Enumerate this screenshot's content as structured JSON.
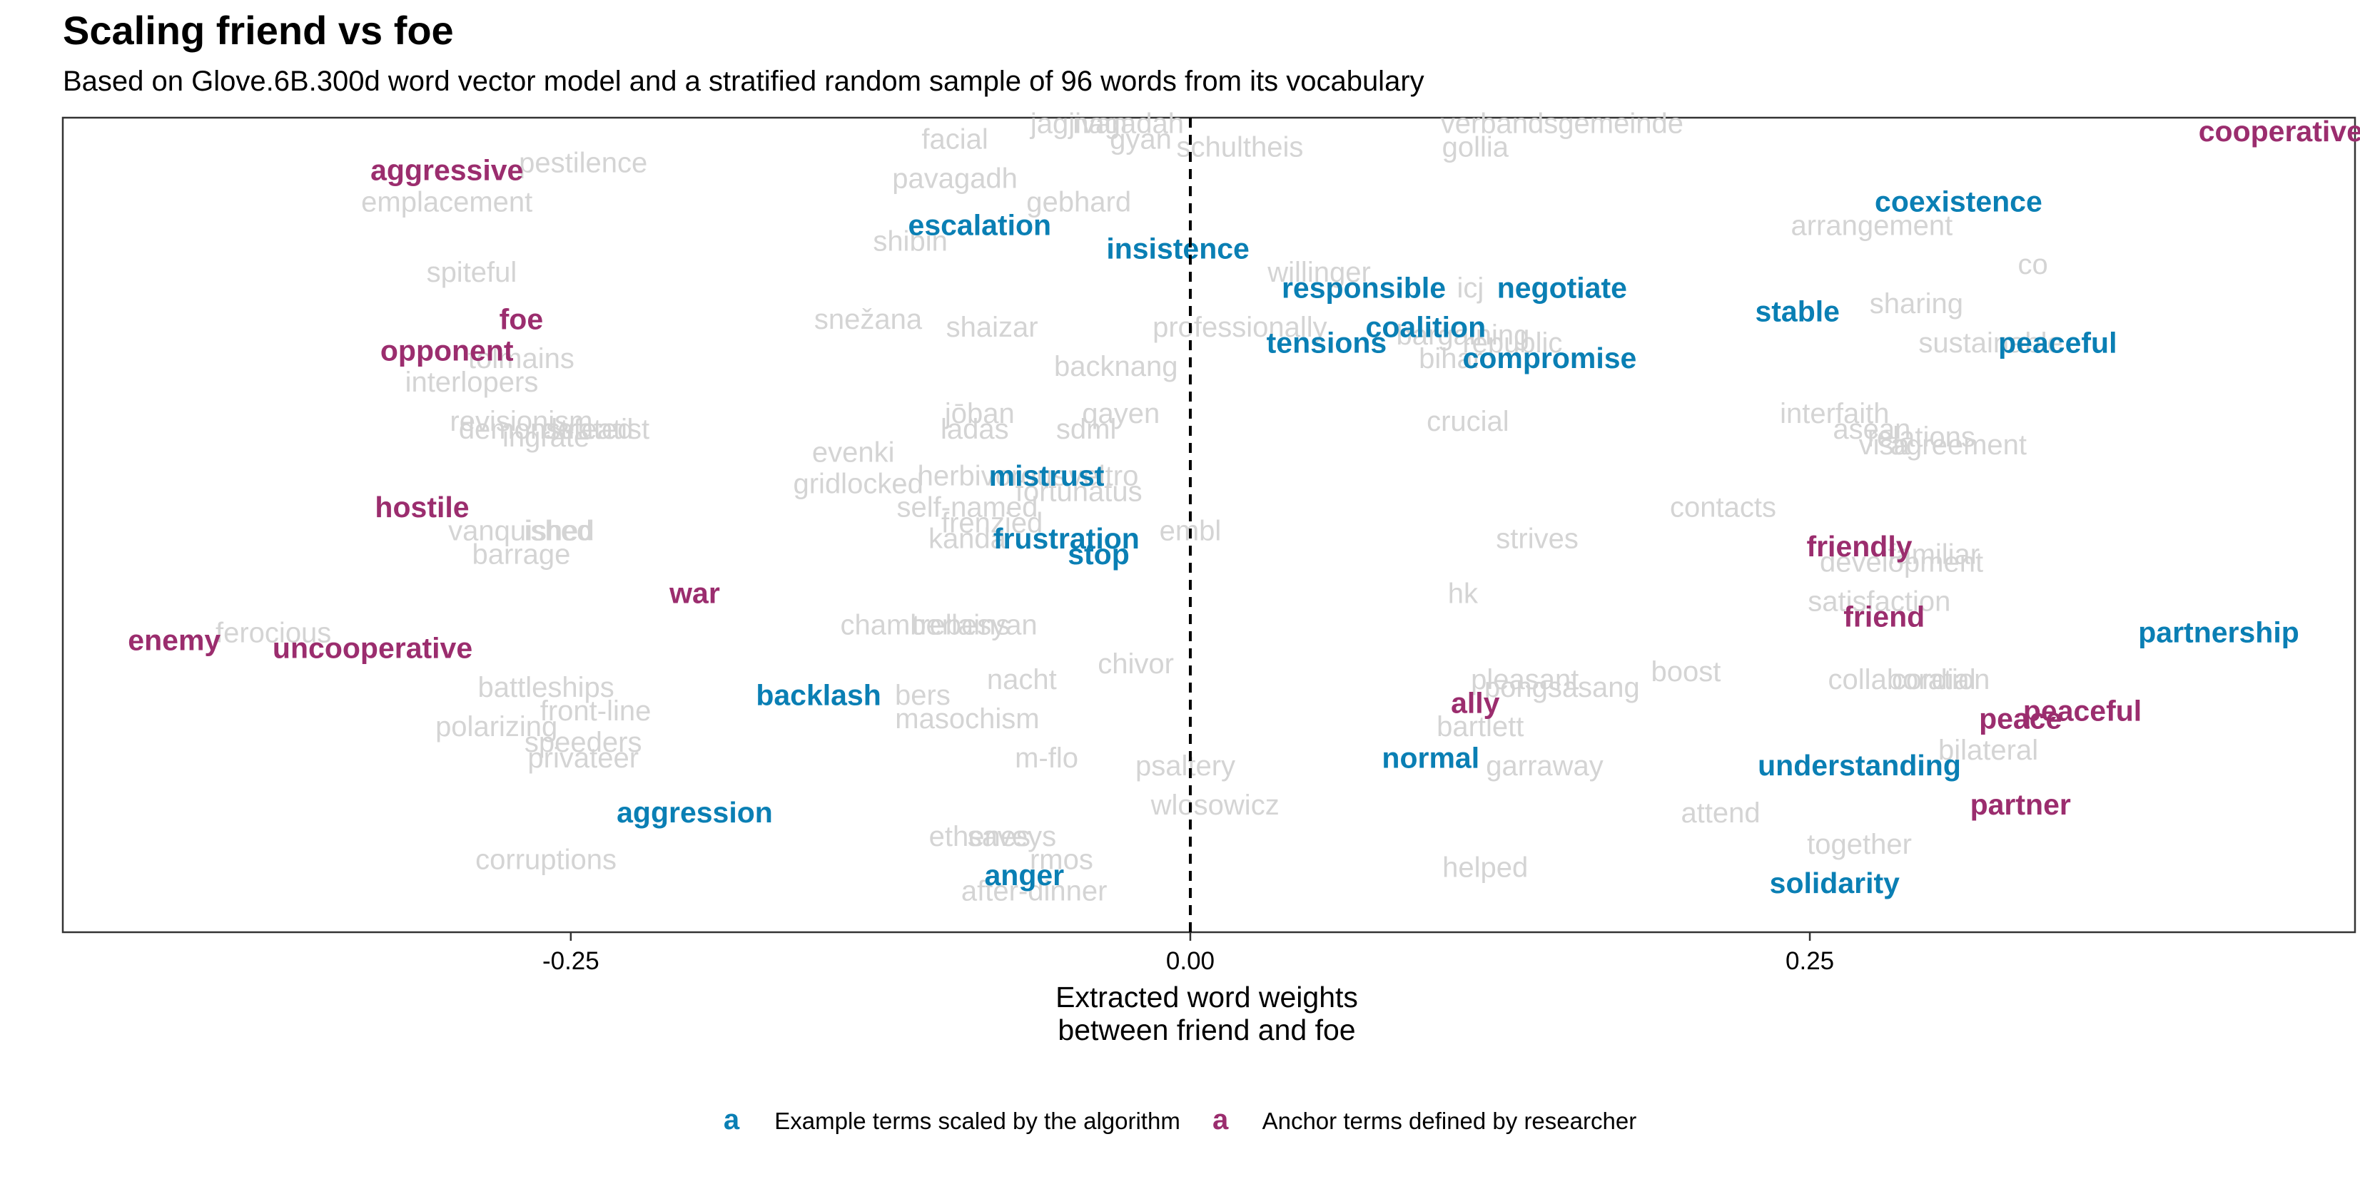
{
  "title": "Scaling friend vs foe",
  "subtitle": "Based on Glove.6B.300d word vector model and a stratified random sample of 96 words from its vocabulary",
  "colors": {
    "example": "#0a7fb4",
    "anchor": "#9b2d6e",
    "background_word": "#d4d4d4",
    "axis": "#000000"
  },
  "legend": [
    {
      "key": "a",
      "label": "Example terms scaled by the algorithm",
      "group": "example"
    },
    {
      "key": "a",
      "label": "Anchor terms defined by researcher",
      "group": "anchor"
    }
  ],
  "chart_data": {
    "type": "scatter",
    "xlabel": "Extracted word weights\nbetween friend and foe",
    "ylabel": "",
    "xlim": [
      -0.455,
      0.47
    ],
    "ylim": [
      0,
      52
    ],
    "xticks": [
      -0.25,
      0.0,
      0.25
    ],
    "xtick_labels": [
      "-0.25",
      "0.00",
      "0.25"
    ],
    "reference_line": {
      "x": 0.0,
      "style": "dashed"
    },
    "grid": false,
    "legend_position": "bottom",
    "points": [
      {
        "label": "aggressive",
        "x": -0.3,
        "y": 48.5,
        "group": "anchor"
      },
      {
        "label": "foe",
        "x": -0.27,
        "y": 39,
        "group": "anchor"
      },
      {
        "label": "opponent",
        "x": -0.3,
        "y": 37,
        "group": "anchor"
      },
      {
        "label": "hostile",
        "x": -0.31,
        "y": 27,
        "group": "anchor"
      },
      {
        "label": "war",
        "x": -0.2,
        "y": 21.5,
        "group": "anchor"
      },
      {
        "label": "enemy",
        "x": -0.41,
        "y": 18.5,
        "group": "anchor"
      },
      {
        "label": "uncooperative",
        "x": -0.33,
        "y": 18,
        "group": "anchor"
      },
      {
        "label": "cooperative",
        "x": 0.44,
        "y": 51,
        "group": "anchor"
      },
      {
        "label": "friendly",
        "x": 0.27,
        "y": 24.5,
        "group": "anchor"
      },
      {
        "label": "friend",
        "x": 0.28,
        "y": 20,
        "group": "anchor"
      },
      {
        "label": "ally",
        "x": 0.115,
        "y": 14.5,
        "group": "anchor"
      },
      {
        "label": "peaceful",
        "x": 0.36,
        "y": 14,
        "group": "anchor"
      },
      {
        "label": "peace",
        "x": 0.335,
        "y": 13.5,
        "group": "anchor"
      },
      {
        "label": "partner",
        "x": 0.335,
        "y": 8,
        "group": "anchor"
      },
      {
        "label": "escalation",
        "x": -0.085,
        "y": 45,
        "group": "example"
      },
      {
        "label": "insistence",
        "x": -0.005,
        "y": 43.5,
        "group": "example"
      },
      {
        "label": "responsible",
        "x": 0.07,
        "y": 41,
        "group": "example"
      },
      {
        "label": "negotiate",
        "x": 0.15,
        "y": 41,
        "group": "example"
      },
      {
        "label": "coalition",
        "x": 0.095,
        "y": 38.5,
        "group": "example"
      },
      {
        "label": "tensions",
        "x": 0.055,
        "y": 37.5,
        "group": "example"
      },
      {
        "label": "compromise",
        "x": 0.145,
        "y": 36.5,
        "group": "example"
      },
      {
        "label": "mistrust",
        "x": -0.058,
        "y": 29,
        "group": "example"
      },
      {
        "label": "frustration",
        "x": -0.05,
        "y": 25,
        "group": "example"
      },
      {
        "label": "stop",
        "x": -0.037,
        "y": 24,
        "group": "example"
      },
      {
        "label": "backlash",
        "x": -0.15,
        "y": 15,
        "group": "example"
      },
      {
        "label": "aggression",
        "x": -0.2,
        "y": 7.5,
        "group": "example"
      },
      {
        "label": "anger",
        "x": -0.067,
        "y": 3.5,
        "group": "example"
      },
      {
        "label": "normal",
        "x": 0.097,
        "y": 11,
        "group": "example"
      },
      {
        "label": "understanding",
        "x": 0.27,
        "y": 10.5,
        "group": "example"
      },
      {
        "label": "solidarity",
        "x": 0.26,
        "y": 3,
        "group": "example"
      },
      {
        "label": "coexistence",
        "x": 0.31,
        "y": 46.5,
        "group": "example"
      },
      {
        "label": "stable",
        "x": 0.245,
        "y": 39.5,
        "group": "example"
      },
      {
        "label": "peaceful",
        "x": 0.35,
        "y": 37.5,
        "group": "example"
      },
      {
        "label": "partnership",
        "x": 0.415,
        "y": 19,
        "group": "example"
      },
      {
        "label": "pestilence",
        "x": -0.245,
        "y": 49,
        "group": "other"
      },
      {
        "label": "emplacement",
        "x": -0.3,
        "y": 46.5,
        "group": "other"
      },
      {
        "label": "spiteful",
        "x": -0.29,
        "y": 42,
        "group": "other"
      },
      {
        "label": "tolmains",
        "x": -0.27,
        "y": 36.5,
        "group": "other"
      },
      {
        "label": "interlopers",
        "x": -0.29,
        "y": 35,
        "group": "other"
      },
      {
        "label": "revisionism",
        "x": -0.27,
        "y": 32.5,
        "group": "other"
      },
      {
        "label": "demonstrated",
        "x": -0.26,
        "y": 32,
        "group": "other"
      },
      {
        "label": "defeatist",
        "x": -0.24,
        "y": 32,
        "group": "other"
      },
      {
        "label": "ingrate",
        "x": -0.26,
        "y": 31.5,
        "group": "other"
      },
      {
        "label": "vanquished",
        "x": -0.27,
        "y": 25.5,
        "group": "other"
      },
      {
        "label": "ished",
        "x": -0.255,
        "y": 25.5,
        "group": "other"
      },
      {
        "label": "barrage",
        "x": -0.27,
        "y": 24,
        "group": "other"
      },
      {
        "label": "ferocious",
        "x": -0.37,
        "y": 19,
        "group": "other"
      },
      {
        "label": "battleships",
        "x": -0.26,
        "y": 15.5,
        "group": "other"
      },
      {
        "label": "front-line",
        "x": -0.24,
        "y": 14,
        "group": "other"
      },
      {
        "label": "polarizing",
        "x": -0.28,
        "y": 13,
        "group": "other"
      },
      {
        "label": "speeders",
        "x": -0.245,
        "y": 12,
        "group": "other"
      },
      {
        "label": "privateer",
        "x": -0.245,
        "y": 11,
        "group": "other"
      },
      {
        "label": "corruptions",
        "x": -0.26,
        "y": 4.5,
        "group": "other"
      },
      {
        "label": "facial",
        "x": -0.095,
        "y": 50.5,
        "group": "other"
      },
      {
        "label": "jagjivan",
        "x": -0.045,
        "y": 51.5,
        "group": "other"
      },
      {
        "label": "nagadah",
        "x": -0.025,
        "y": 51.5,
        "group": "other"
      },
      {
        "label": "gyan",
        "x": -0.02,
        "y": 50.5,
        "group": "other"
      },
      {
        "label": "schultheis",
        "x": 0.02,
        "y": 50,
        "group": "other"
      },
      {
        "label": "verbandsgemeinde",
        "x": 0.15,
        "y": 51.5,
        "group": "other"
      },
      {
        "label": "gollia",
        "x": 0.115,
        "y": 50,
        "group": "other"
      },
      {
        "label": "pavagadh",
        "x": -0.095,
        "y": 48,
        "group": "other"
      },
      {
        "label": "gebhard",
        "x": -0.045,
        "y": 46.5,
        "group": "other"
      },
      {
        "label": "shibin",
        "x": -0.113,
        "y": 44,
        "group": "other"
      },
      {
        "label": "willinger",
        "x": 0.052,
        "y": 42,
        "group": "other"
      },
      {
        "label": "icj",
        "x": 0.113,
        "y": 41,
        "group": "other"
      },
      {
        "label": "snežana",
        "x": -0.13,
        "y": 39,
        "group": "other"
      },
      {
        "label": "shaizar",
        "x": -0.08,
        "y": 38.5,
        "group": "other"
      },
      {
        "label": "professionally",
        "x": 0.02,
        "y": 38.5,
        "group": "other"
      },
      {
        "label": "bargaining",
        "x": 0.11,
        "y": 38,
        "group": "other"
      },
      {
        "label": "republic",
        "x": 0.13,
        "y": 37.5,
        "group": "other"
      },
      {
        "label": "bihar",
        "x": 0.105,
        "y": 36.5,
        "group": "other"
      },
      {
        "label": "backnang",
        "x": -0.03,
        "y": 36,
        "group": "other"
      },
      {
        "label": "jōban",
        "x": -0.085,
        "y": 33,
        "group": "other"
      },
      {
        "label": "qayen",
        "x": -0.028,
        "y": 33,
        "group": "other"
      },
      {
        "label": "ladas",
        "x": -0.087,
        "y": 32,
        "group": "other"
      },
      {
        "label": "sdml",
        "x": -0.042,
        "y": 32,
        "group": "other"
      },
      {
        "label": "crucial",
        "x": 0.112,
        "y": 32.5,
        "group": "other"
      },
      {
        "label": "evenki",
        "x": -0.136,
        "y": 30.5,
        "group": "other"
      },
      {
        "label": "gridlocked",
        "x": -0.134,
        "y": 28.5,
        "group": "other"
      },
      {
        "label": "herbivorous",
        "x": -0.08,
        "y": 29,
        "group": "other"
      },
      {
        "label": "veltro",
        "x": -0.035,
        "y": 29,
        "group": "other"
      },
      {
        "label": "fortunatus",
        "x": -0.045,
        "y": 28,
        "group": "other"
      },
      {
        "label": "self-named",
        "x": -0.09,
        "y": 27,
        "group": "other"
      },
      {
        "label": "frenzied",
        "x": -0.08,
        "y": 26,
        "group": "other"
      },
      {
        "label": "kanda",
        "x": -0.09,
        "y": 25,
        "group": "other"
      },
      {
        "label": "embl",
        "x": 0.0,
        "y": 25.5,
        "group": "other"
      },
      {
        "label": "chamberlains",
        "x": -0.107,
        "y": 19.5,
        "group": "other"
      },
      {
        "label": "trebesyan",
        "x": -0.087,
        "y": 19.5,
        "group": "other"
      },
      {
        "label": "chivor",
        "x": -0.022,
        "y": 17,
        "group": "other"
      },
      {
        "label": "nacht",
        "x": -0.068,
        "y": 16,
        "group": "other"
      },
      {
        "label": "bers",
        "x": -0.108,
        "y": 15,
        "group": "other"
      },
      {
        "label": "masochism",
        "x": -0.09,
        "y": 13.5,
        "group": "other"
      },
      {
        "label": "m-flo",
        "x": -0.058,
        "y": 11,
        "group": "other"
      },
      {
        "label": "psaltery",
        "x": -0.002,
        "y": 10.5,
        "group": "other"
      },
      {
        "label": "wlosowicz",
        "x": 0.01,
        "y": 8,
        "group": "other"
      },
      {
        "label": "ethenes",
        "x": -0.085,
        "y": 6,
        "group": "other"
      },
      {
        "label": "saveys",
        "x": -0.072,
        "y": 6,
        "group": "other"
      },
      {
        "label": "rmos",
        "x": -0.052,
        "y": 4.5,
        "group": "other"
      },
      {
        "label": "after-dinner",
        "x": -0.063,
        "y": 2.5,
        "group": "other"
      },
      {
        "label": "strives",
        "x": 0.14,
        "y": 25,
        "group": "other"
      },
      {
        "label": "hk",
        "x": 0.11,
        "y": 21.5,
        "group": "other"
      },
      {
        "label": "pleasant",
        "x": 0.135,
        "y": 16,
        "group": "other"
      },
      {
        "label": "pongsasang",
        "x": 0.15,
        "y": 15.5,
        "group": "other"
      },
      {
        "label": "bartlett",
        "x": 0.117,
        "y": 13,
        "group": "other"
      },
      {
        "label": "garraway",
        "x": 0.143,
        "y": 10.5,
        "group": "other"
      },
      {
        "label": "helped",
        "x": 0.119,
        "y": 4,
        "group": "other"
      },
      {
        "label": "boost",
        "x": 0.2,
        "y": 16.5,
        "group": "other"
      },
      {
        "label": "attend",
        "x": 0.214,
        "y": 7.5,
        "group": "other"
      },
      {
        "label": "contacts",
        "x": 0.215,
        "y": 27,
        "group": "other"
      },
      {
        "label": "arrangement",
        "x": 0.275,
        "y": 45,
        "group": "other"
      },
      {
        "label": "co",
        "x": 0.34,
        "y": 42.5,
        "group": "other"
      },
      {
        "label": "sharing",
        "x": 0.293,
        "y": 40,
        "group": "other"
      },
      {
        "label": "sustainable",
        "x": 0.323,
        "y": 37.5,
        "group": "other"
      },
      {
        "label": "interfaith",
        "x": 0.26,
        "y": 33,
        "group": "other"
      },
      {
        "label": "asean",
        "x": 0.275,
        "y": 32,
        "group": "other"
      },
      {
        "label": "relations",
        "x": 0.295,
        "y": 31.5,
        "group": "other"
      },
      {
        "label": "visa",
        "x": 0.28,
        "y": 31,
        "group": "other"
      },
      {
        "label": "agreement",
        "x": 0.31,
        "y": 31,
        "group": "other"
      },
      {
        "label": "familiar",
        "x": 0.3,
        "y": 24,
        "group": "other"
      },
      {
        "label": "development",
        "x": 0.287,
        "y": 23.5,
        "group": "other"
      },
      {
        "label": "satisfaction",
        "x": 0.278,
        "y": 21,
        "group": "other"
      },
      {
        "label": "collaboration",
        "x": 0.29,
        "y": 16,
        "group": "other"
      },
      {
        "label": "cordial",
        "x": 0.3,
        "y": 16,
        "group": "other"
      },
      {
        "label": "bilateral",
        "x": 0.322,
        "y": 11.5,
        "group": "other"
      },
      {
        "label": "together",
        "x": 0.27,
        "y": 5.5,
        "group": "other"
      }
    ]
  }
}
